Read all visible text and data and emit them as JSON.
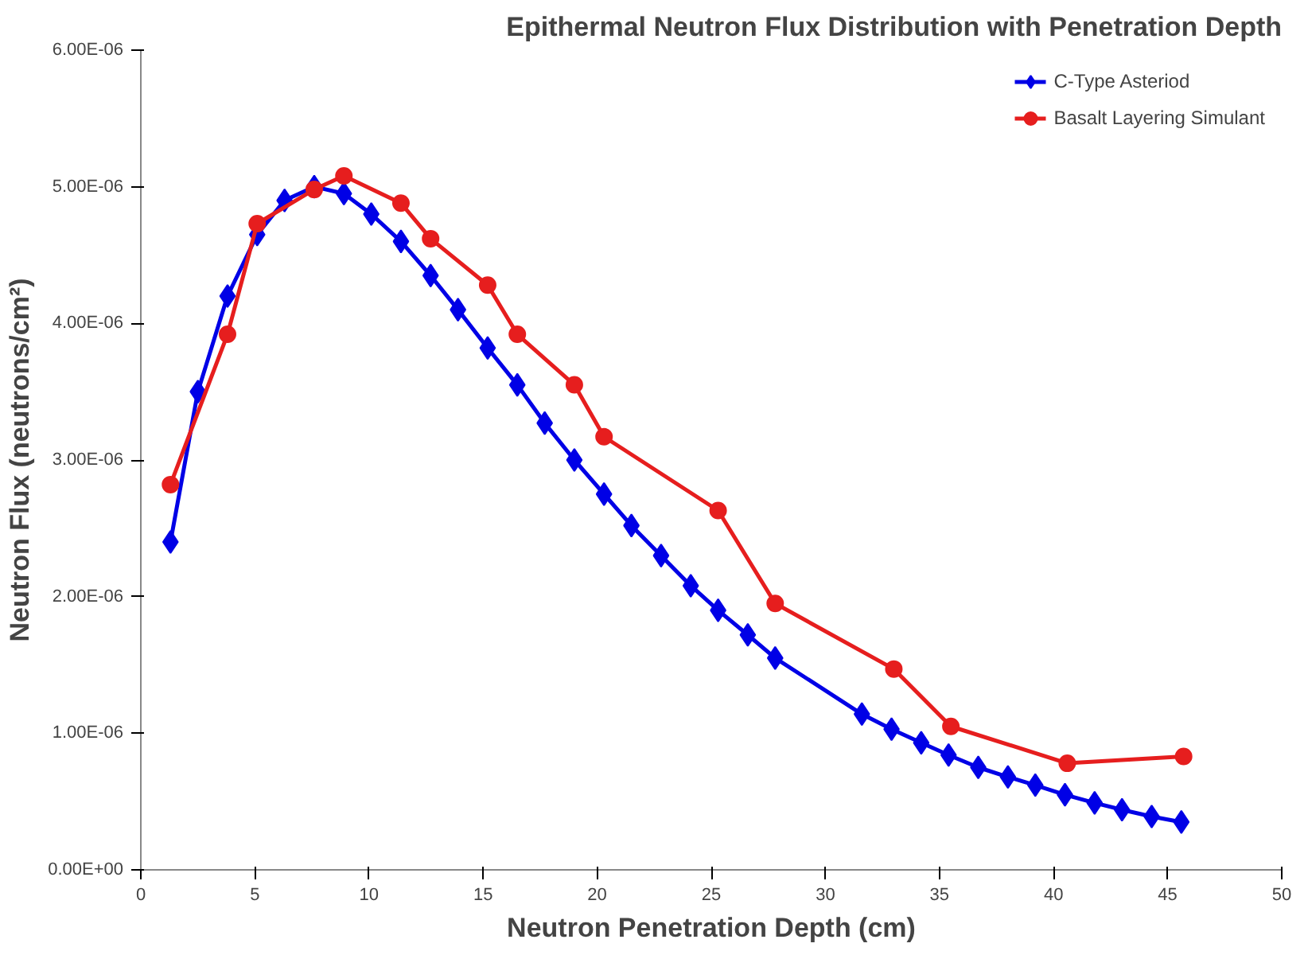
{
  "chart_data": {
    "type": "line",
    "title": "Epithermal Neutron Flux Distribution with Penetration Depth",
    "xlabel": "Neutron Penetration Depth (cm)",
    "ylabel": "Neutron Flux (neutrons/cm²)",
    "xlim": [
      0,
      50
    ],
    "xticks": [
      0,
      5,
      10,
      15,
      20,
      25,
      30,
      35,
      40,
      45,
      50
    ],
    "ylim": [
      0,
      6e-06
    ],
    "yticks": [
      {
        "value": 0,
        "label": "0.00E+00"
      },
      {
        "value": 1e-06,
        "label": "1.00E-06"
      },
      {
        "value": 2e-06,
        "label": "2.00E-06"
      },
      {
        "value": 3e-06,
        "label": "3.00E-06"
      },
      {
        "value": 4e-06,
        "label": "4.00E-06"
      },
      {
        "value": 5e-06,
        "label": "5.00E-06"
      },
      {
        "value": 6e-06,
        "label": "6.00E-06"
      }
    ],
    "grid": false,
    "legend": "top right",
    "series": [
      {
        "name": "C-Type Asteriod",
        "color": "#0000e6",
        "marker": "diamond",
        "x": [
          1.3,
          2.5,
          3.8,
          5.1,
          6.3,
          7.6,
          8.9,
          10.1,
          11.4,
          12.7,
          13.9,
          15.2,
          16.5,
          17.7,
          19.0,
          20.3,
          21.5,
          22.8,
          24.1,
          25.3,
          26.6,
          27.8,
          31.6,
          32.9,
          34.2,
          35.4,
          36.7,
          38.0,
          39.2,
          40.5,
          41.8,
          43.0,
          44.3,
          45.6
        ],
        "values": [
          2.4e-06,
          3.5e-06,
          4.2e-06,
          4.65e-06,
          4.9e-06,
          5e-06,
          4.95e-06,
          4.8e-06,
          4.6e-06,
          4.35e-06,
          4.1e-06,
          3.82e-06,
          3.55e-06,
          3.27e-06,
          3e-06,
          2.75e-06,
          2.52e-06,
          2.3e-06,
          2.08e-06,
          1.9e-06,
          1.72e-06,
          1.55e-06,
          1.14e-06,
          1.03e-06,
          9.3e-07,
          8.4e-07,
          7.5e-07,
          6.8e-07,
          6.2e-07,
          5.5e-07,
          4.9e-07,
          4.4e-07,
          3.9e-07,
          3.5e-07
        ]
      },
      {
        "name": "Basalt Layering Simulant",
        "color": "#e61e1e",
        "marker": "circle",
        "x": [
          1.3,
          3.8,
          5.1,
          7.6,
          8.9,
          11.4,
          12.7,
          15.2,
          16.5,
          19.0,
          20.3,
          25.3,
          27.8,
          33.0,
          35.5,
          40.6,
          45.7
        ],
        "values": [
          2.82e-06,
          3.92e-06,
          4.73e-06,
          4.98e-06,
          5.08e-06,
          4.88e-06,
          4.62e-06,
          4.28e-06,
          3.92e-06,
          3.55e-06,
          3.17e-06,
          2.63e-06,
          1.95e-06,
          1.47e-06,
          1.05e-06,
          7.8e-07,
          8.3e-07
        ]
      }
    ]
  }
}
